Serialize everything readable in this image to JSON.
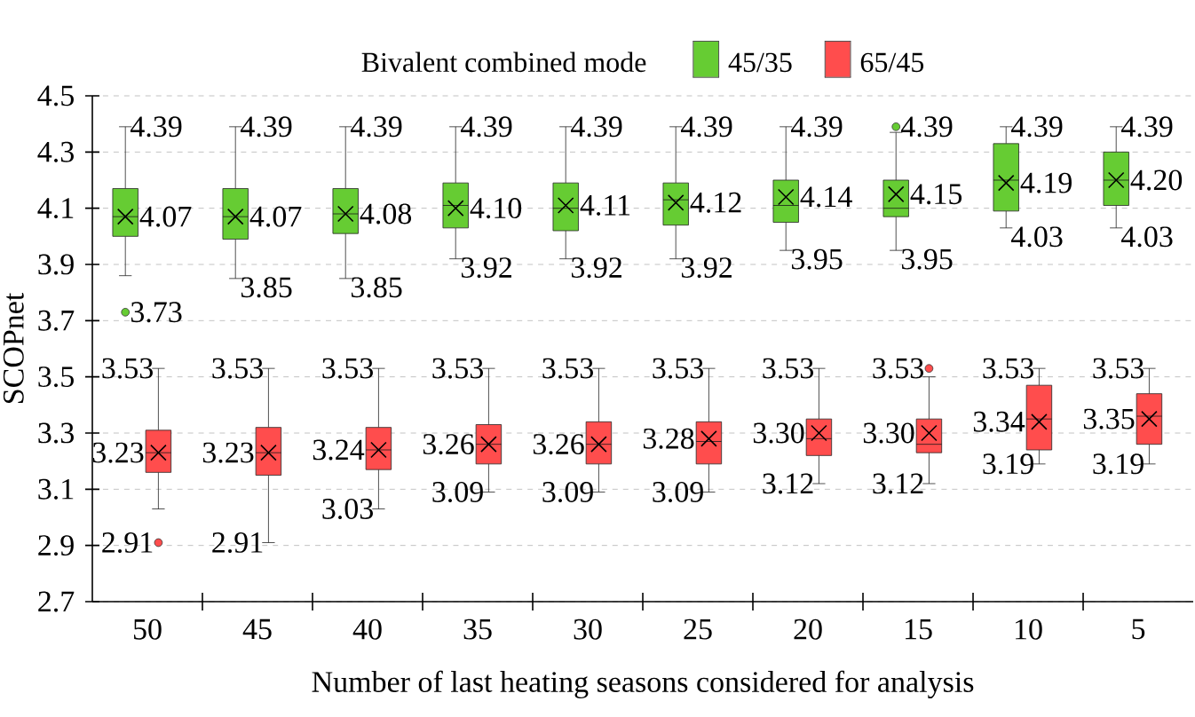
{
  "chart_data": {
    "type": "box",
    "xlabel": "Number of last heating seasons considered for analysis",
    "ylabel": "SCOPnet",
    "legend_title": "Bivalent combined mode",
    "legend": "top",
    "grid": "y",
    "marker": "cross",
    "categories": [
      "50",
      "45",
      "40",
      "35",
      "30",
      "25",
      "20",
      "15",
      "10",
      "5"
    ],
    "ylim": [
      2.7,
      4.5
    ],
    "yticks": [
      2.7,
      2.9,
      3.1,
      3.3,
      3.5,
      3.7,
      3.9,
      4.1,
      4.3,
      4.5
    ],
    "series": [
      {
        "name": "45/35",
        "color": "#66cc33",
        "boxes": [
          {
            "low": 3.86,
            "q1": 4.0,
            "median": 4.07,
            "q3": 4.17,
            "high": 4.39,
            "mean": 4.07,
            "outliers": [
              3.73
            ]
          },
          {
            "low": 3.85,
            "q1": 3.99,
            "median": 4.07,
            "q3": 4.17,
            "high": 4.39,
            "mean": 4.07
          },
          {
            "low": 3.85,
            "q1": 4.01,
            "median": 4.08,
            "q3": 4.17,
            "high": 4.39,
            "mean": 4.08
          },
          {
            "low": 3.92,
            "q1": 4.03,
            "median": 4.11,
            "q3": 4.19,
            "high": 4.39,
            "mean": 4.1
          },
          {
            "low": 3.92,
            "q1": 4.02,
            "median": 4.1,
            "q3": 4.19,
            "high": 4.39,
            "mean": 4.11
          },
          {
            "low": 3.92,
            "q1": 4.04,
            "median": 4.13,
            "q3": 4.19,
            "high": 4.39,
            "mean": 4.12
          },
          {
            "low": 3.95,
            "q1": 4.05,
            "median": 4.11,
            "q3": 4.2,
            "high": 4.39,
            "mean": 4.14
          },
          {
            "low": 3.95,
            "q1": 4.07,
            "median": 4.1,
            "q3": 4.2,
            "high": 4.37,
            "mean": 4.15,
            "outliers": [
              4.39
            ]
          },
          {
            "low": 4.03,
            "q1": 4.09,
            "median": 4.2,
            "q3": 4.33,
            "high": 4.39,
            "mean": 4.19
          },
          {
            "low": 4.03,
            "q1": 4.11,
            "median": 4.2,
            "q3": 4.3,
            "high": 4.39,
            "mean": 4.2
          }
        ]
      },
      {
        "name": "65/45",
        "color": "#ff4d4d",
        "boxes": [
          {
            "low": 3.03,
            "q1": 3.16,
            "median": 3.23,
            "q3": 3.31,
            "high": 3.53,
            "mean": 3.23,
            "outliers": [
              2.91
            ]
          },
          {
            "low": 2.91,
            "q1": 3.15,
            "median": 3.23,
            "q3": 3.32,
            "high": 3.53,
            "mean": 3.23
          },
          {
            "low": 3.03,
            "q1": 3.17,
            "median": 3.24,
            "q3": 3.32,
            "high": 3.53,
            "mean": 3.24
          },
          {
            "low": 3.09,
            "q1": 3.19,
            "median": 3.26,
            "q3": 3.33,
            "high": 3.53,
            "mean": 3.26
          },
          {
            "low": 3.09,
            "q1": 3.19,
            "median": 3.26,
            "q3": 3.34,
            "high": 3.53,
            "mean": 3.26
          },
          {
            "low": 3.09,
            "q1": 3.19,
            "median": 3.27,
            "q3": 3.34,
            "high": 3.53,
            "mean": 3.28
          },
          {
            "low": 3.12,
            "q1": 3.22,
            "median": 3.28,
            "q3": 3.35,
            "high": 3.53,
            "mean": 3.3
          },
          {
            "low": 3.12,
            "q1": 3.23,
            "median": 3.26,
            "q3": 3.35,
            "high": 3.5,
            "mean": 3.3,
            "outliers": [
              3.53
            ]
          },
          {
            "low": 3.19,
            "q1": 3.24,
            "median": 3.35,
            "q3": 3.47,
            "high": 3.53,
            "mean": 3.34
          },
          {
            "low": 3.19,
            "q1": 3.26,
            "median": 3.36,
            "q3": 3.44,
            "high": 3.53,
            "mean": 3.35
          }
        ]
      }
    ],
    "annotations": [
      "4.39",
      "4.07",
      "3.73",
      "3.53",
      "3.23",
      "2.91",
      "4.39",
      "4.07",
      "3.85",
      "3.53",
      "3.23",
      "2.91",
      "4.39",
      "4.08",
      "3.85",
      "3.53",
      "3.24",
      "3.03",
      "4.39",
      "4.10",
      "3.92",
      "3.53",
      "3.26",
      "3.09",
      "4.39",
      "4.11",
      "3.92",
      "3.53",
      "3.26",
      "3.09",
      "4.39",
      "4.12",
      "3.92",
      "3.53",
      "3.28",
      "3.09",
      "4.39",
      "4.14",
      "3.95",
      "3.53",
      "3.30",
      "3.12",
      "4.39",
      "4.15",
      "3.95",
      "3.53",
      "3.30",
      "3.12",
      "4.39",
      "4.19",
      "4.03",
      "3.53",
      "3.34",
      "3.19",
      "4.39",
      "4.20",
      "4.03",
      "3.53",
      "3.35",
      "3.19"
    ]
  }
}
